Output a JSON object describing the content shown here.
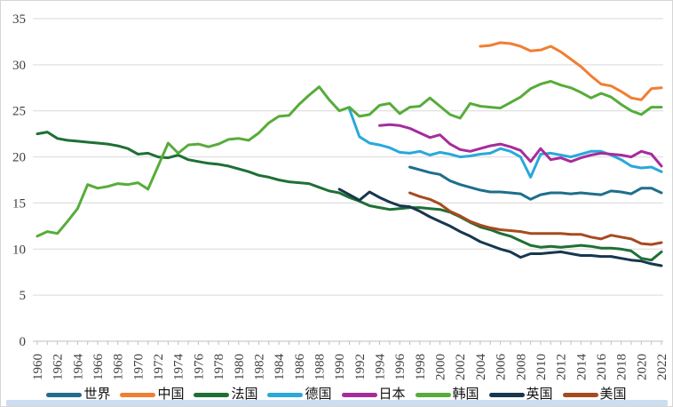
{
  "frame": {
    "border_color": "#d5d5d5",
    "background_color": "#ffffff",
    "gridline_color": "#d9d9d9",
    "axis_line_color": "#bfbfbf",
    "tick_label_color": "#3f3f3f",
    "scrollbar_color": "#cbddef"
  },
  "chart_data": {
    "type": "line",
    "title": "",
    "xlabel": "",
    "ylabel": "",
    "x_range": [
      1960,
      2022
    ],
    "x_label_step": 2,
    "ylim": [
      0,
      35
    ],
    "y_ticks": [
      0,
      5,
      10,
      15,
      20,
      25,
      30,
      35
    ],
    "grid": "horizontal",
    "legend_position": "bottom",
    "line_width": 3,
    "series": [
      {
        "key": "world",
        "name": "世界",
        "color": "#1f6e8c",
        "start_year": 1997,
        "values": [
          18.9,
          18.6,
          18.3,
          18.1,
          17.4,
          17.0,
          16.7,
          16.4,
          16.2,
          16.2,
          16.1,
          16.0,
          15.4,
          15.9,
          16.1,
          16.1,
          16.0,
          16.1,
          16.0,
          15.9,
          16.3,
          16.2,
          16.0,
          16.6,
          16.6,
          16.1
        ]
      },
      {
        "key": "china",
        "name": "中国",
        "color": "#f07e33",
        "start_year": 2004,
        "values": [
          32.0,
          32.1,
          32.4,
          32.3,
          32.0,
          31.5,
          31.6,
          32.0,
          31.4,
          30.6,
          29.8,
          28.8,
          27.9,
          27.7,
          27.1,
          26.4,
          26.2,
          27.4,
          27.5
        ]
      },
      {
        "key": "france",
        "name": "法国",
        "color": "#1e7034",
        "start_year": 1960,
        "values": [
          22.5,
          22.7,
          22.0,
          21.8,
          21.7,
          21.6,
          21.5,
          21.4,
          21.2,
          20.9,
          20.3,
          20.4,
          20.0,
          19.9,
          20.2,
          19.7,
          19.5,
          19.3,
          19.2,
          19.0,
          18.7,
          18.4,
          18.0,
          17.8,
          17.5,
          17.3,
          17.2,
          17.1,
          16.7,
          16.3,
          16.1,
          15.6,
          15.2,
          14.7,
          14.5,
          14.3,
          14.4,
          14.5,
          14.5,
          14.4,
          14.3,
          14.0,
          13.5,
          12.9,
          12.4,
          12.1,
          11.7,
          11.4,
          10.9,
          10.4,
          10.2,
          10.3,
          10.2,
          10.3,
          10.4,
          10.3,
          10.1,
          10.1,
          10.0,
          9.8,
          9.0,
          8.8,
          9.7
        ]
      },
      {
        "key": "germany",
        "name": "德国",
        "color": "#29a8dc",
        "start_year": 1991,
        "values": [
          25.2,
          22.2,
          21.5,
          21.3,
          21.0,
          20.5,
          20.4,
          20.6,
          20.2,
          20.5,
          20.3,
          20.0,
          20.1,
          20.3,
          20.4,
          20.9,
          20.6,
          20.0,
          17.8,
          20.3,
          20.4,
          20.2,
          20.0,
          20.3,
          20.6,
          20.6,
          20.2,
          19.7,
          19.0,
          18.8,
          18.9,
          18.4
        ]
      },
      {
        "key": "japan",
        "name": "日本",
        "color": "#a62c9c",
        "start_year": 1994,
        "values": [
          23.4,
          23.5,
          23.4,
          23.1,
          22.6,
          22.1,
          22.4,
          21.4,
          20.8,
          20.6,
          20.9,
          21.2,
          21.4,
          21.1,
          20.7,
          19.5,
          20.9,
          19.7,
          19.9,
          19.5,
          19.9,
          20.2,
          20.4,
          20.3,
          20.2,
          20.0,
          20.6,
          20.3,
          19.0
        ]
      },
      {
        "key": "korea",
        "name": "韩国",
        "color": "#57ac3a",
        "start_year": 1960,
        "values": [
          11.4,
          11.9,
          11.7,
          13.0,
          14.4,
          17.0,
          16.6,
          16.8,
          17.1,
          17.0,
          17.2,
          16.5,
          19.0,
          21.5,
          20.4,
          21.3,
          21.4,
          21.1,
          21.4,
          21.9,
          22.0,
          21.8,
          22.6,
          23.7,
          24.4,
          24.5,
          25.7,
          26.7,
          27.6,
          26.2,
          25.0,
          25.4,
          24.4,
          24.6,
          25.6,
          25.8,
          24.7,
          25.4,
          25.5,
          26.4,
          25.5,
          24.6,
          24.2,
          25.8,
          25.5,
          25.4,
          25.3,
          25.9,
          26.5,
          27.4,
          27.9,
          28.2,
          27.8,
          27.5,
          27.0,
          26.4,
          26.9,
          26.5,
          25.7,
          25.0,
          24.6,
          25.4,
          25.4
        ]
      },
      {
        "key": "uk",
        "name": "英国",
        "color": "#17374e",
        "start_year": 1990,
        "values": [
          16.5,
          15.9,
          15.3,
          16.2,
          15.6,
          15.1,
          14.7,
          14.6,
          14.1,
          13.5,
          13.0,
          12.5,
          11.9,
          11.4,
          10.8,
          10.4,
          10.0,
          9.7,
          9.1,
          9.5,
          9.5,
          9.6,
          9.7,
          9.5,
          9.3,
          9.3,
          9.2,
          9.2,
          9.0,
          8.8,
          8.7,
          8.4,
          8.2
        ]
      },
      {
        "key": "us",
        "name": "美国",
        "color": "#a64b1e",
        "start_year": 1997,
        "values": [
          16.1,
          15.7,
          15.4,
          14.9,
          14.1,
          13.6,
          13.0,
          12.6,
          12.3,
          12.1,
          12.0,
          11.9,
          11.7,
          11.7,
          11.7,
          11.7,
          11.6,
          11.6,
          11.3,
          11.1,
          11.5,
          11.3,
          11.1,
          10.6,
          10.5,
          10.7
        ]
      }
    ]
  }
}
